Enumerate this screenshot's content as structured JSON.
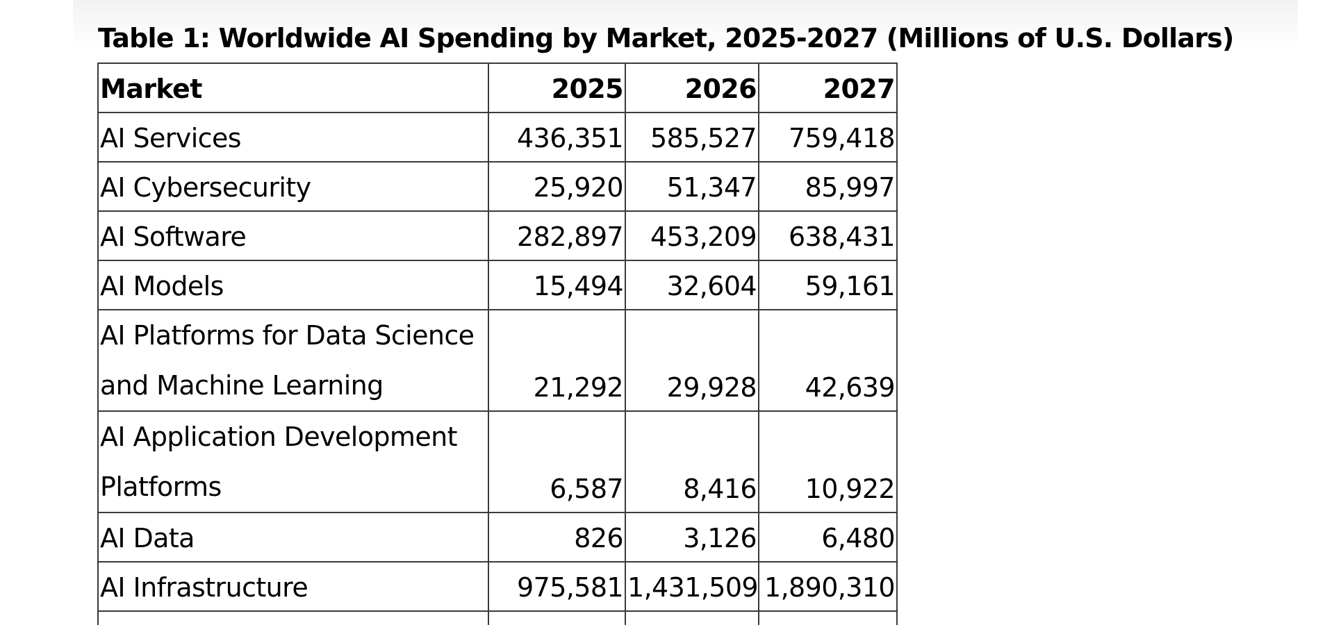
{
  "document": {
    "title": "Table 1: Worldwide AI Spending by Market, 2025-2027 (Millions of U.S. Dollars)"
  },
  "table": {
    "headers": {
      "market": "Market",
      "y1": "2025",
      "y2": "2026",
      "y3": "2027"
    },
    "rows": [
      {
        "market": "AI Services",
        "y1": "436,351",
        "y2": "585,527",
        "y3": "759,418"
      },
      {
        "market": "AI Cybersecurity",
        "y1": "25,920",
        "y2": "51,347",
        "y3": "85,997"
      },
      {
        "market": "AI Software",
        "y1": "282,897",
        "y2": "453,209",
        "y3": "638,431"
      },
      {
        "market": "AI Models",
        "y1": "15,494",
        "y2": "32,604",
        "y3": "59,161"
      },
      {
        "market": "AI Platforms for Data Science and Machine Learning",
        "y1": "21,292",
        "y2": "29,928",
        "y3": "42,639"
      },
      {
        "market": "AI Application Development Platforms",
        "y1": "6,587",
        "y2": "8,416",
        "y3": "10,922"
      },
      {
        "market": "AI Data",
        "y1": "826",
        "y2": "3,126",
        "y3": "6,480"
      },
      {
        "market": "AI Infrastructure",
        "y1": "975,581",
        "y2": "1,431,509",
        "y3": "1,890,310"
      }
    ]
  }
}
